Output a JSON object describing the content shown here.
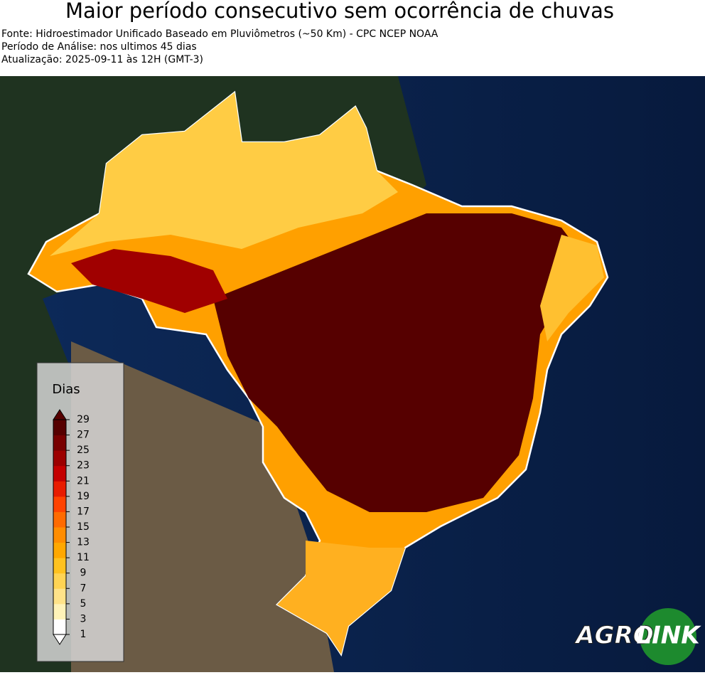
{
  "header": {
    "title": "Maior período consecutivo sem ocorrência de chuvas",
    "lines": [
      "Fonte: Hidroestimador Unificado Baseado em Pluviômetros (~50 Km) - CPC NCEP NOAA",
      "Período de Análise: nos ultimos 45 dias",
      "Atualização: 2025-09-11 às 12H (GMT-3)"
    ]
  },
  "legend": {
    "title": "Dias",
    "ticks": [
      1,
      3,
      5,
      7,
      9,
      11,
      13,
      15,
      17,
      19,
      21,
      23,
      25,
      27,
      29
    ],
    "colors": [
      "#ffffff",
      "#fff3b8",
      "#ffe389",
      "#ffd454",
      "#ffc21f",
      "#ffa800",
      "#ff8d00",
      "#ff6b00",
      "#ff4300",
      "#e81c00",
      "#c40000",
      "#9c0000",
      "#780000",
      "#560000"
    ]
  },
  "logo": {
    "left": "AGRO",
    "right": "LINK"
  }
}
